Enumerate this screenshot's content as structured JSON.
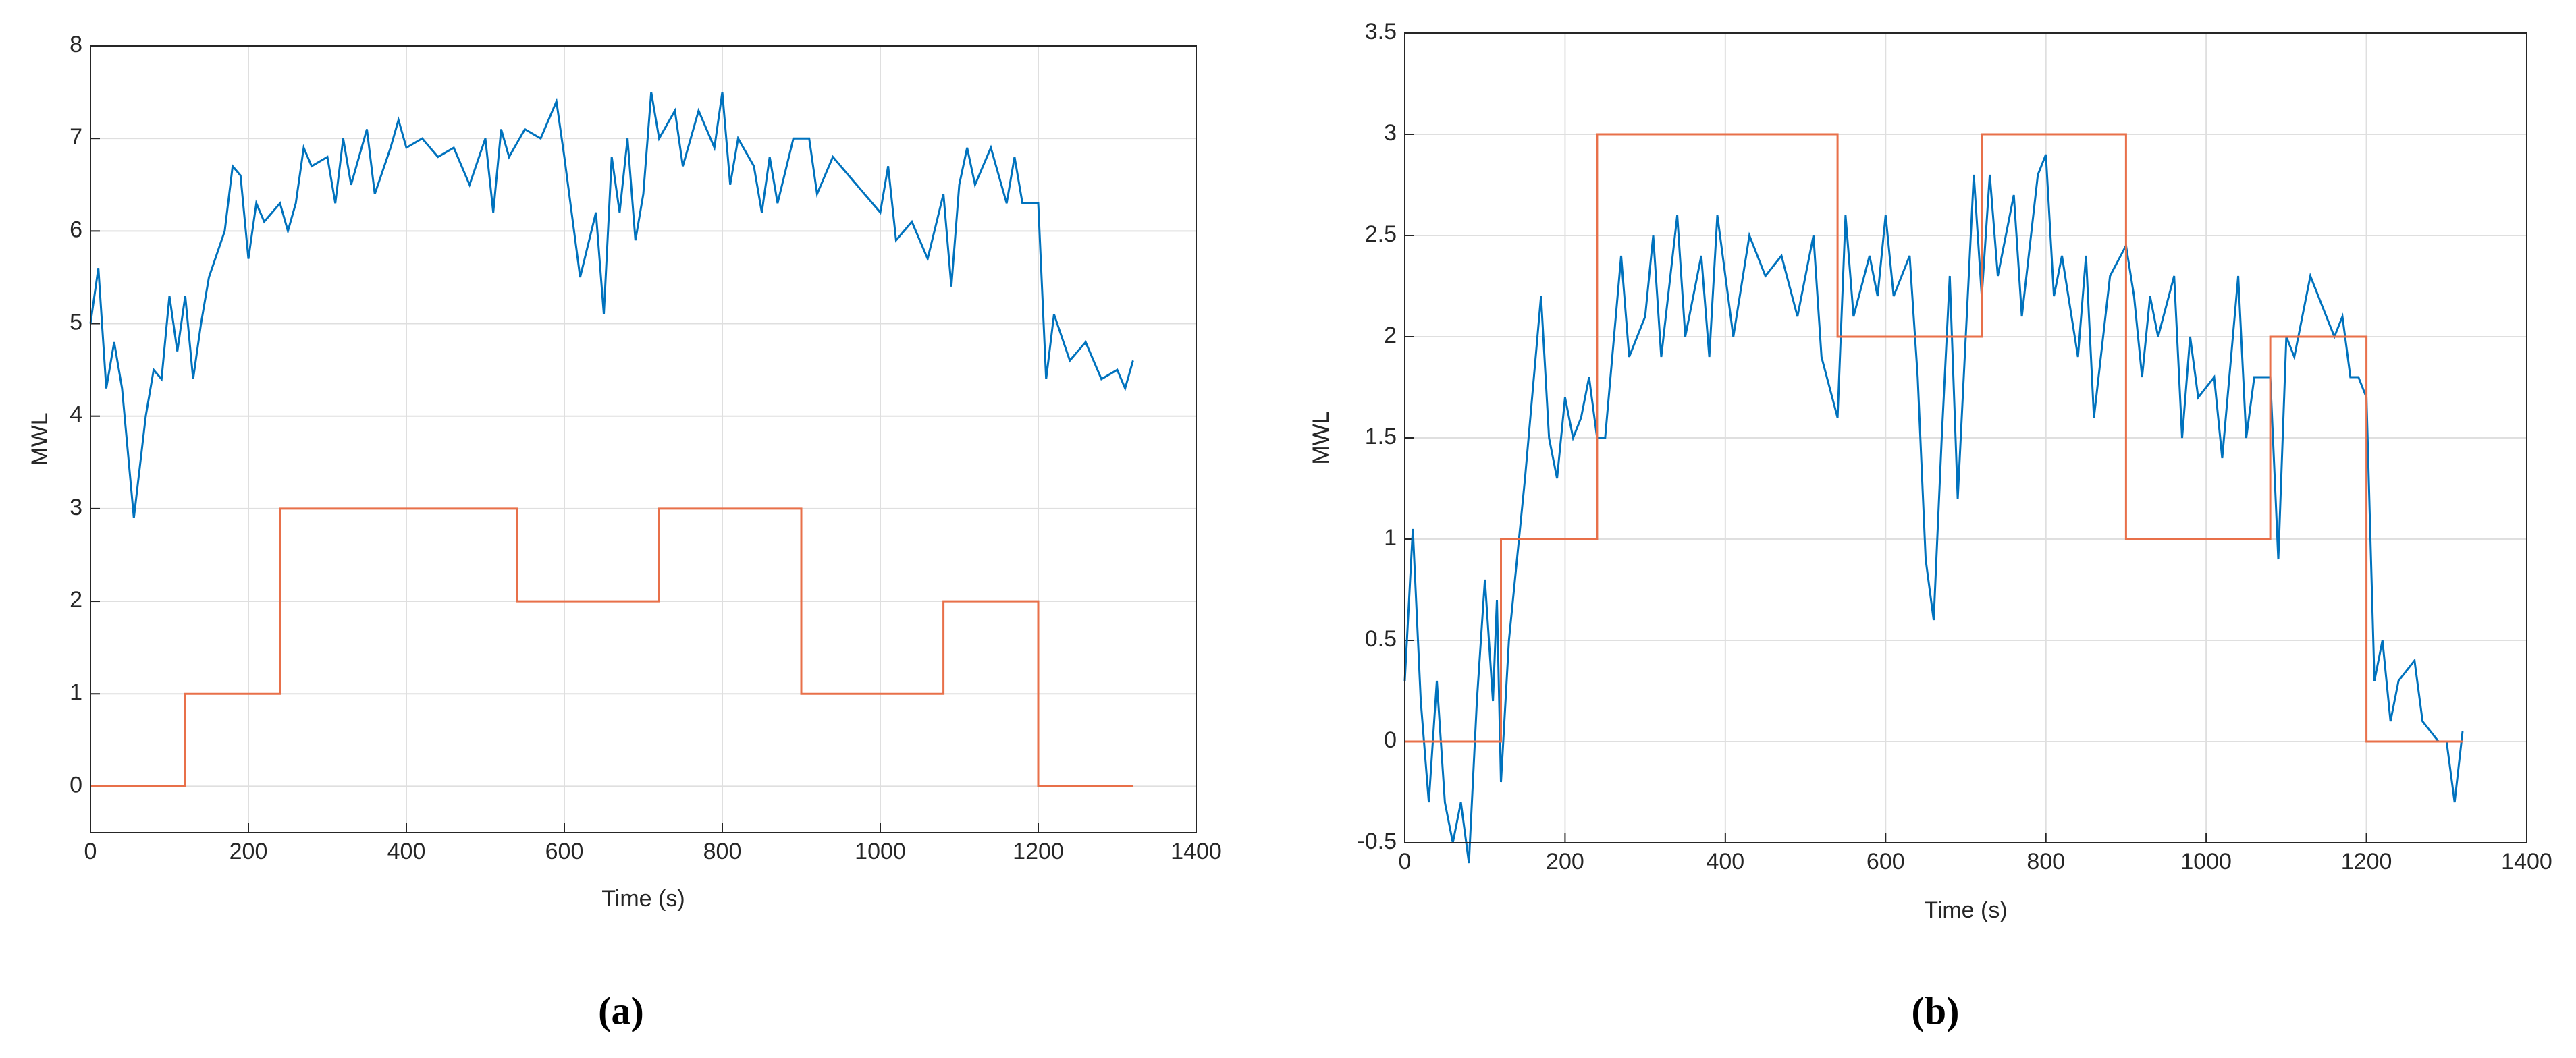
{
  "chart_data": [
    {
      "type": "line",
      "caption": "(a)",
      "xlabel": "Time (s)",
      "ylabel": "MWL",
      "xlim": [
        0,
        1400
      ],
      "xticks": [
        0,
        200,
        400,
        600,
        800,
        1000,
        1200,
        1400
      ],
      "ylim": [
        -0.5,
        8
      ],
      "yticks": [
        0,
        1,
        2,
        3,
        4,
        5,
        6,
        7,
        8
      ],
      "grid": true,
      "series": [
        {
          "color": "#0072bd",
          "x": [
            0,
            10,
            20,
            30,
            40,
            55,
            70,
            80,
            90,
            100,
            110,
            120,
            130,
            140,
            150,
            170,
            180,
            190,
            200,
            210,
            220,
            240,
            250,
            260,
            270,
            280,
            300,
            310,
            320,
            330,
            350,
            360,
            380,
            390,
            400,
            420,
            440,
            460,
            480,
            500,
            510,
            520,
            530,
            550,
            570,
            590,
            600,
            620,
            640,
            650,
            660,
            670,
            680,
            690,
            700,
            710,
            720,
            740,
            750,
            770,
            790,
            800,
            810,
            820,
            840,
            850,
            860,
            870,
            890,
            910,
            920,
            940,
            960,
            980,
            1000,
            1010,
            1020,
            1040,
            1060,
            1080,
            1090,
            1100,
            1110,
            1120,
            1140,
            1160,
            1170,
            1180,
            1200,
            1210,
            1220,
            1240,
            1260,
            1280,
            1300,
            1310,
            1320
          ],
          "values": [
            5.0,
            5.6,
            4.3,
            4.8,
            4.3,
            2.9,
            4.0,
            4.5,
            4.4,
            5.3,
            4.7,
            5.3,
            4.4,
            5.0,
            5.5,
            6.0,
            6.7,
            6.6,
            5.7,
            6.3,
            6.1,
            6.3,
            6.0,
            6.3,
            6.9,
            6.7,
            6.8,
            6.3,
            7.0,
            6.5,
            7.1,
            6.4,
            6.9,
            7.2,
            6.9,
            7.0,
            6.8,
            6.9,
            6.5,
            7.0,
            6.2,
            7.1,
            6.8,
            7.1,
            7.0,
            7.4,
            6.8,
            5.5,
            6.2,
            5.1,
            6.8,
            6.2,
            7.0,
            5.9,
            6.4,
            7.5,
            7.0,
            7.3,
            6.7,
            7.3,
            6.9,
            7.5,
            6.5,
            7.0,
            6.7,
            6.2,
            6.8,
            6.3,
            7.0,
            7.0,
            6.4,
            6.8,
            6.6,
            6.4,
            6.2,
            6.7,
            5.9,
            6.1,
            5.7,
            6.4,
            5.4,
            6.5,
            6.9,
            6.5,
            6.9,
            6.3,
            6.8,
            6.3,
            6.3,
            4.4,
            5.1,
            4.6,
            4.8,
            4.4,
            4.5,
            4.3,
            4.6
          ]
        },
        {
          "color": "#e8704a",
          "x": [
            0,
            120,
            120,
            240,
            240,
            540,
            540,
            720,
            720,
            900,
            900,
            1080,
            1080,
            1200,
            1200,
            1320
          ],
          "values": [
            0,
            0,
            1,
            1,
            3,
            3,
            2,
            2,
            3,
            3,
            1,
            1,
            2,
            2,
            0,
            0
          ]
        }
      ]
    },
    {
      "type": "line",
      "caption": "(b)",
      "xlabel": "Time (s)",
      "ylabel": "MWL",
      "xlim": [
        0,
        1400
      ],
      "xticks": [
        0,
        200,
        400,
        600,
        800,
        1000,
        1200,
        1400
      ],
      "ylim": [
        -0.5,
        3.5
      ],
      "yticks": [
        -0.5,
        0,
        0.5,
        1,
        1.5,
        2,
        2.5,
        3,
        3.5
      ],
      "grid": true,
      "series": [
        {
          "color": "#0072bd",
          "x": [
            0,
            10,
            20,
            30,
            40,
            50,
            60,
            70,
            80,
            90,
            100,
            110,
            115,
            120,
            130,
            140,
            150,
            170,
            180,
            190,
            200,
            210,
            220,
            230,
            240,
            250,
            270,
            280,
            300,
            310,
            320,
            340,
            350,
            370,
            380,
            390,
            400,
            410,
            430,
            450,
            470,
            490,
            510,
            520,
            540,
            550,
            560,
            580,
            590,
            600,
            610,
            630,
            640,
            650,
            660,
            670,
            680,
            690,
            700,
            710,
            720,
            730,
            740,
            760,
            770,
            790,
            800,
            810,
            820,
            840,
            850,
            860,
            880,
            900,
            910,
            920,
            930,
            940,
            960,
            970,
            980,
            990,
            1010,
            1020,
            1040,
            1050,
            1060,
            1080,
            1090,
            1100,
            1110,
            1130,
            1140,
            1160,
            1170,
            1180,
            1190,
            1200,
            1210,
            1220,
            1230,
            1240,
            1260,
            1270,
            1290,
            1300,
            1310,
            1320
          ],
          "values": [
            0.3,
            1.05,
            0.2,
            -0.3,
            0.3,
            -0.3,
            -0.5,
            -0.3,
            -0.6,
            0.2,
            0.8,
            0.2,
            0.7,
            -0.2,
            0.5,
            0.9,
            1.3,
            2.2,
            1.5,
            1.3,
            1.7,
            1.5,
            1.6,
            1.8,
            1.5,
            1.5,
            2.4,
            1.9,
            2.1,
            2.5,
            1.9,
            2.6,
            2.0,
            2.4,
            1.9,
            2.6,
            2.3,
            2.0,
            2.5,
            2.3,
            2.4,
            2.1,
            2.5,
            1.9,
            1.6,
            2.6,
            2.1,
            2.4,
            2.2,
            2.6,
            2.2,
            2.4,
            1.8,
            0.9,
            0.6,
            1.5,
            2.3,
            1.2,
            2.0,
            2.8,
            2.2,
            2.8,
            2.3,
            2.7,
            2.1,
            2.8,
            2.9,
            2.2,
            2.4,
            1.9,
            2.4,
            1.6,
            2.3,
            2.45,
            2.2,
            1.8,
            2.2,
            2.0,
            2.3,
            1.5,
            2.0,
            1.7,
            1.8,
            1.4,
            2.3,
            1.5,
            1.8,
            1.8,
            0.9,
            2.0,
            1.9,
            2.3,
            2.2,
            2.0,
            2.1,
            1.8,
            1.8,
            1.7,
            0.3,
            0.5,
            0.1,
            0.3,
            0.4,
            0.1,
            0.0,
            0.0,
            -0.3,
            0.05
          ]
        },
        {
          "color": "#e8704a",
          "x": [
            0,
            120,
            120,
            240,
            240,
            540,
            540,
            720,
            720,
            900,
            900,
            1080,
            1080,
            1200,
            1200,
            1320
          ],
          "values": [
            0,
            0,
            1,
            1,
            3,
            3,
            2,
            2,
            3,
            3,
            1,
            1,
            2,
            2,
            0,
            0
          ]
        }
      ]
    }
  ]
}
